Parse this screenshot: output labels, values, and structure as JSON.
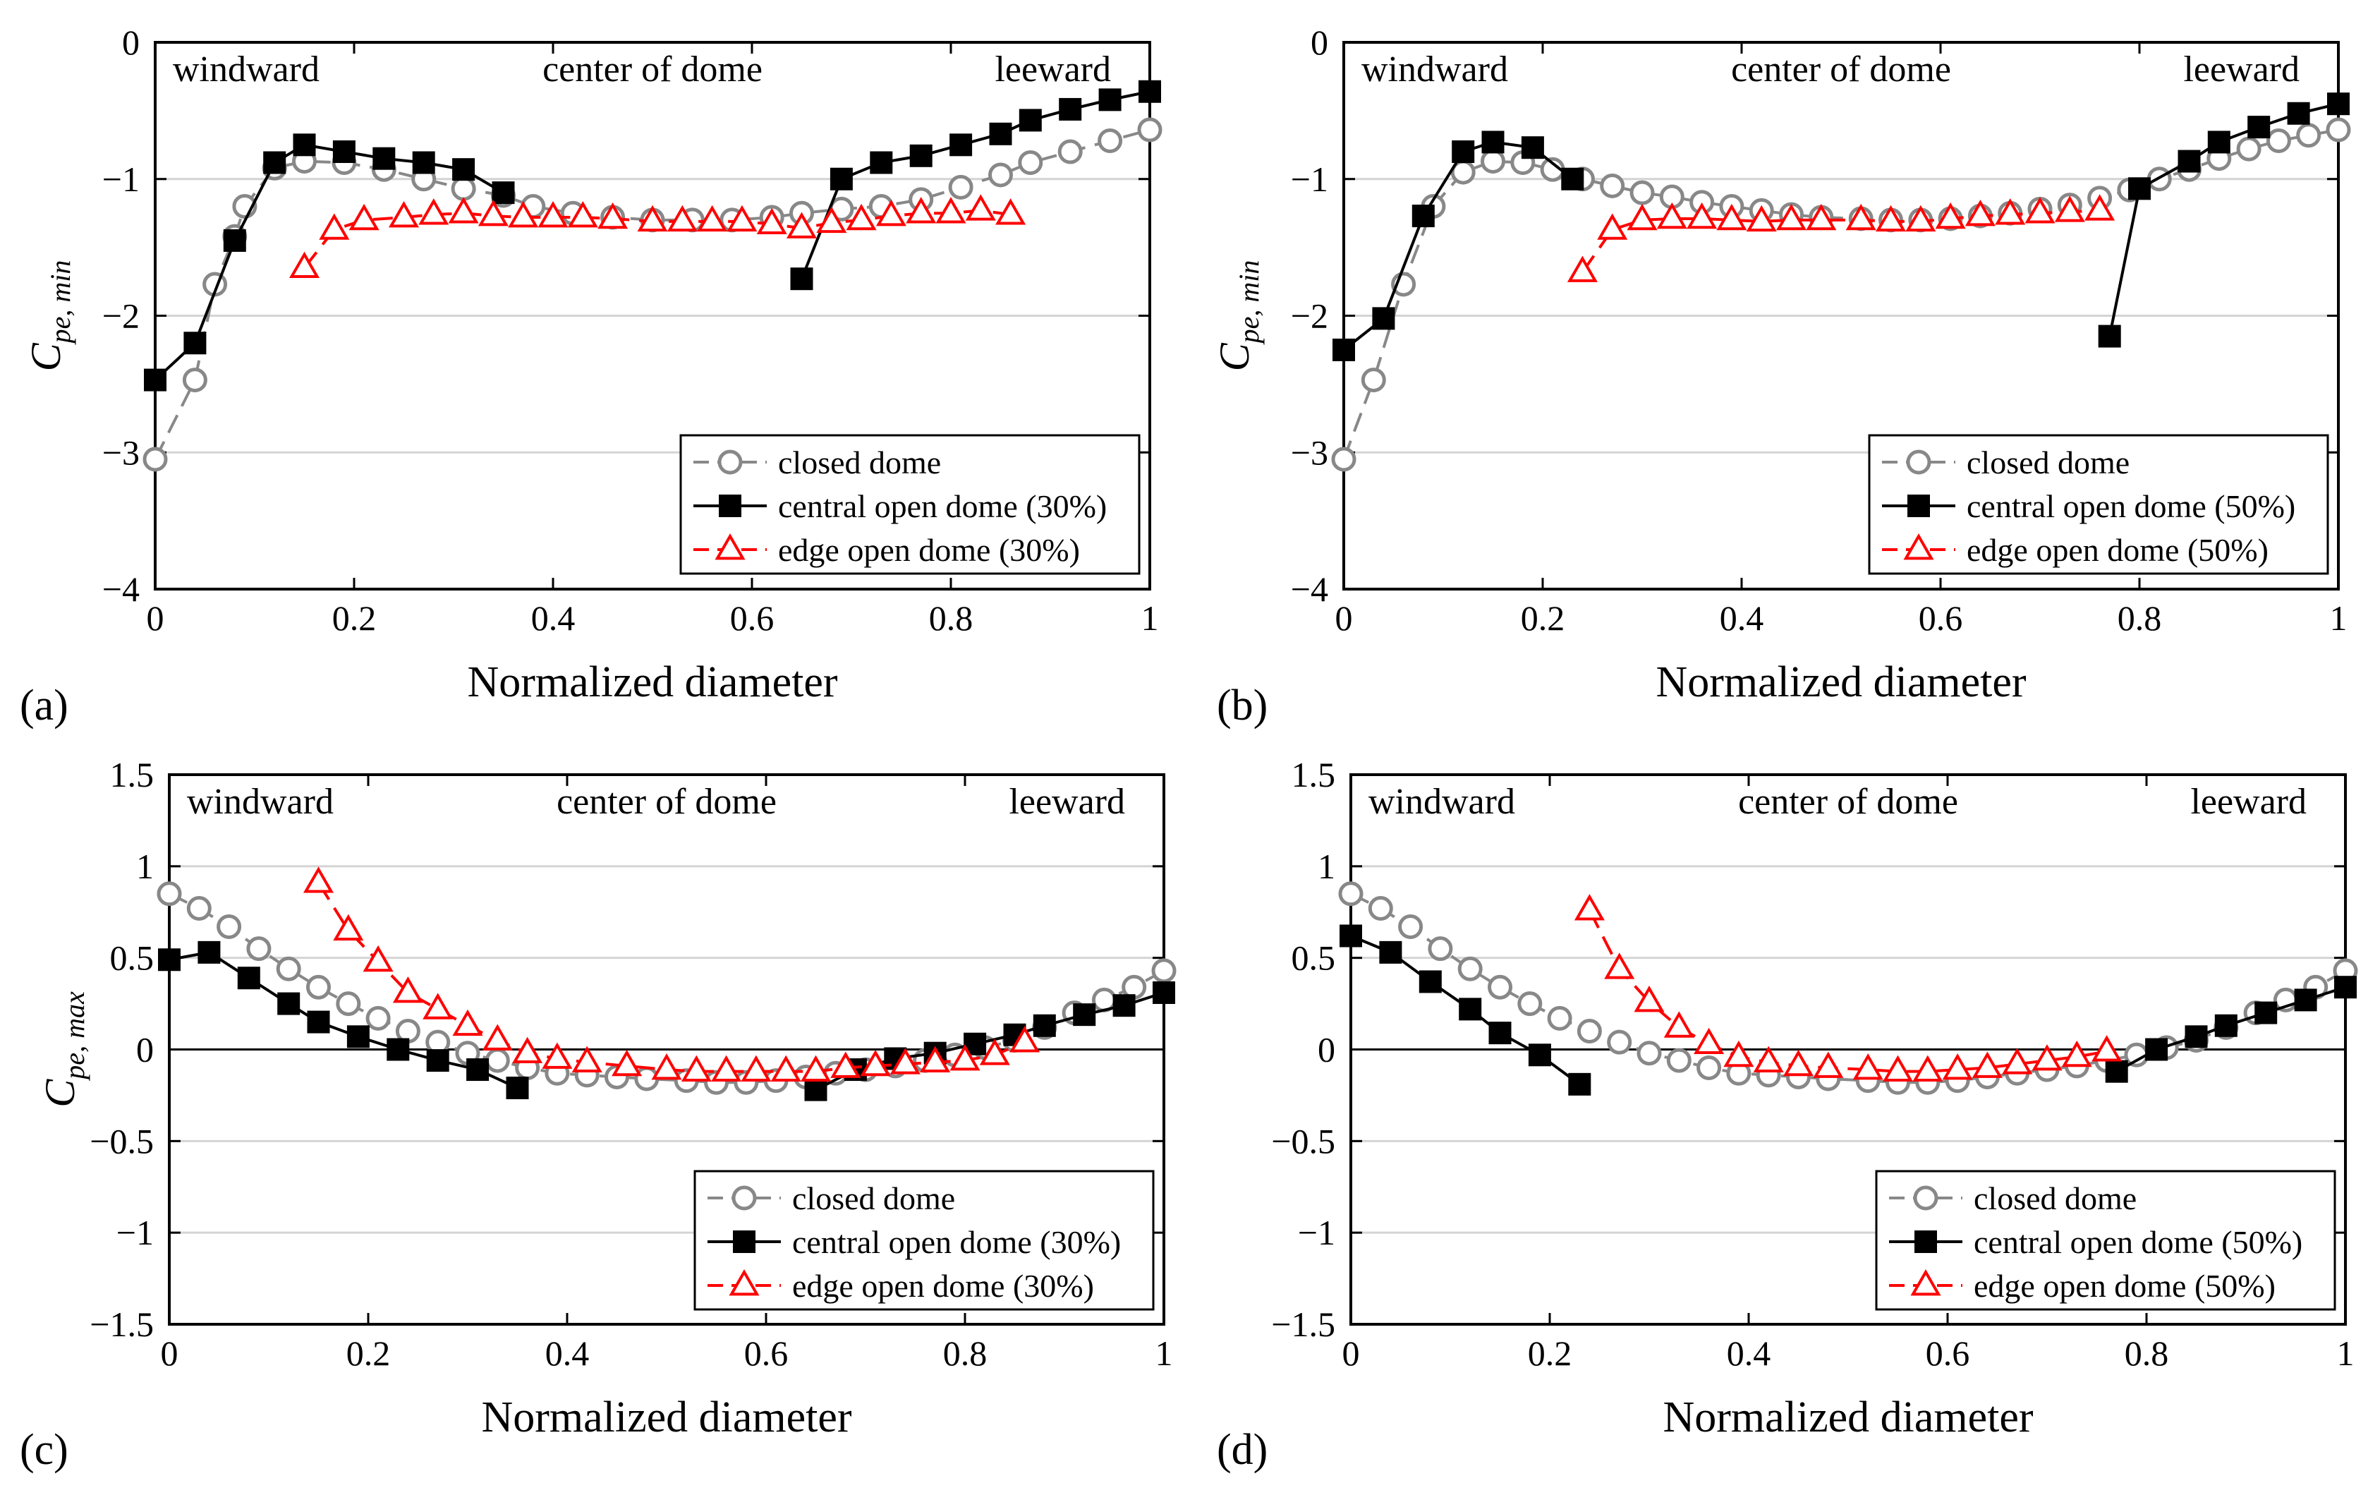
{
  "xlabel": "Normalized diameter",
  "region_labels": {
    "left": "windward",
    "center": "center of dome",
    "right": "leeward"
  },
  "colors": {
    "closed": "#888888",
    "central": "#000000",
    "edge": "#ff0000"
  },
  "chart_data": [
    {
      "panel": "(a)",
      "type": "line",
      "title": "",
      "ylabel_main": "C",
      "ylabel_sub": "pe, min",
      "xlim": [
        0,
        1
      ],
      "ylim": [
        -4,
        0
      ],
      "xticks": [
        0,
        0.2,
        0.4,
        0.6,
        0.8,
        1
      ],
      "xtick_labels": [
        "0",
        "0.2",
        "0.4",
        "0.6",
        "0.8",
        "1"
      ],
      "yticks": [
        -4,
        -3,
        -2,
        -1,
        0
      ],
      "ytick_labels": [
        "−4",
        "−3",
        "−2",
        "−1",
        "0"
      ],
      "gridlines_y": [
        -3,
        -2,
        -1
      ],
      "zero_line": false,
      "legend_position": "bottom-right",
      "series": [
        {
          "name": "closed dome",
          "style": "closed",
          "x": [
            0,
            0.04,
            0.06,
            0.08,
            0.09,
            0.12,
            0.15,
            0.19,
            0.23,
            0.27,
            0.31,
            0.35,
            0.38,
            0.42,
            0.46,
            0.5,
            0.54,
            0.58,
            0.62,
            0.65,
            0.69,
            0.73,
            0.77,
            0.81,
            0.85,
            0.88,
            0.92,
            0.96,
            1.0
          ],
          "y": [
            -3.05,
            -2.47,
            -1.77,
            -1.42,
            -1.2,
            -0.92,
            -0.87,
            -0.88,
            -0.93,
            -1.0,
            -1.07,
            -1.12,
            -1.2,
            -1.25,
            -1.28,
            -1.3,
            -1.3,
            -1.3,
            -1.28,
            -1.25,
            -1.22,
            -1.2,
            -1.15,
            -1.06,
            -0.97,
            -0.88,
            -0.8,
            -0.72,
            -0.64
          ]
        },
        {
          "name": "central open dome (30%)",
          "style": "central",
          "segments": [
            {
              "x": [
                0,
                0.04,
                0.08,
                0.12,
                0.15,
                0.19,
                0.23,
                0.27,
                0.31,
                0.35
              ],
              "y": [
                -2.47,
                -2.2,
                -1.45,
                -0.88,
                -0.75,
                -0.8,
                -0.85,
                -0.88,
                -0.93,
                -1.1
              ]
            },
            {
              "x": [
                0.65,
                0.69,
                0.73,
                0.77,
                0.81,
                0.85,
                0.88,
                0.92,
                0.96,
                1.0
              ],
              "y": [
                -1.73,
                -1.0,
                -0.88,
                -0.83,
                -0.75,
                -0.67,
                -0.57,
                -0.49,
                -0.42,
                -0.36
              ]
            }
          ]
        },
        {
          "name": "edge open dome (30%)",
          "style": "edge",
          "x": [
            0.15,
            0.18,
            0.21,
            0.25,
            0.28,
            0.31,
            0.34,
            0.37,
            0.4,
            0.43,
            0.46,
            0.5,
            0.53,
            0.56,
            0.59,
            0.62,
            0.65,
            0.68,
            0.71,
            0.74,
            0.77,
            0.8,
            0.83,
            0.86
          ],
          "y": [
            -1.65,
            -1.37,
            -1.3,
            -1.28,
            -1.26,
            -1.25,
            -1.27,
            -1.28,
            -1.28,
            -1.28,
            -1.29,
            -1.31,
            -1.31,
            -1.31,
            -1.31,
            -1.33,
            -1.36,
            -1.32,
            -1.3,
            -1.27,
            -1.25,
            -1.25,
            -1.23,
            -1.26
          ]
        }
      ],
      "legend": [
        "closed dome",
        "central open dome (30%)",
        "edge open dome (30%)"
      ]
    },
    {
      "panel": "(b)",
      "type": "line",
      "title": "",
      "ylabel_main": "C",
      "ylabel_sub": "pe, min",
      "xlim": [
        0,
        1
      ],
      "ylim": [
        -4,
        0
      ],
      "xticks": [
        0,
        0.2,
        0.4,
        0.6,
        0.8,
        1
      ],
      "xtick_labels": [
        "0",
        "0.2",
        "0.4",
        "0.6",
        "0.8",
        "1"
      ],
      "yticks": [
        -4,
        -3,
        -2,
        -1,
        0
      ],
      "ytick_labels": [
        "−4",
        "−3",
        "−2",
        "−1",
        "0"
      ],
      "gridlines_y": [
        -3,
        -2,
        -1
      ],
      "zero_line": false,
      "legend_position": "bottom-right",
      "series": [
        {
          "name": "closed dome",
          "style": "closed",
          "x": [
            0,
            0.03,
            0.06,
            0.09,
            0.12,
            0.15,
            0.18,
            0.21,
            0.24,
            0.27,
            0.3,
            0.33,
            0.36,
            0.39,
            0.42,
            0.45,
            0.48,
            0.52,
            0.55,
            0.58,
            0.61,
            0.64,
            0.67,
            0.7,
            0.73,
            0.76,
            0.79,
            0.82,
            0.85,
            0.88,
            0.91,
            0.94,
            0.97,
            1.0
          ],
          "y": [
            -3.05,
            -2.47,
            -1.77,
            -1.2,
            -0.95,
            -0.87,
            -0.88,
            -0.93,
            -1.0,
            -1.05,
            -1.1,
            -1.13,
            -1.17,
            -1.2,
            -1.23,
            -1.26,
            -1.28,
            -1.29,
            -1.3,
            -1.3,
            -1.29,
            -1.27,
            -1.25,
            -1.22,
            -1.19,
            -1.14,
            -1.08,
            -1.0,
            -0.93,
            -0.85,
            -0.78,
            -0.72,
            -0.68,
            -0.64
          ]
        },
        {
          "name": "central open dome (50%)",
          "style": "central",
          "segments": [
            {
              "x": [
                0,
                0.04,
                0.08,
                0.12,
                0.15,
                0.19,
                0.23
              ],
              "y": [
                -2.25,
                -2.02,
                -1.27,
                -0.8,
                -0.73,
                -0.77,
                -1.0
              ]
            },
            {
              "x": [
                0.77,
                0.8,
                0.85,
                0.88,
                0.92,
                0.96,
                1.0
              ],
              "y": [
                -2.15,
                -1.07,
                -0.87,
                -0.73,
                -0.62,
                -0.52,
                -0.45
              ]
            }
          ]
        },
        {
          "name": "edge open dome (50%)",
          "style": "edge",
          "x": [
            0.24,
            0.27,
            0.3,
            0.33,
            0.36,
            0.39,
            0.42,
            0.45,
            0.48,
            0.52,
            0.55,
            0.58,
            0.61,
            0.64,
            0.67,
            0.7,
            0.73,
            0.76
          ],
          "y": [
            -1.68,
            -1.37,
            -1.3,
            -1.29,
            -1.29,
            -1.3,
            -1.31,
            -1.3,
            -1.3,
            -1.3,
            -1.31,
            -1.31,
            -1.29,
            -1.27,
            -1.26,
            -1.25,
            -1.24,
            -1.23
          ]
        }
      ],
      "legend": [
        "closed dome",
        "central open dome (50%)",
        "edge open dome (50%)"
      ]
    },
    {
      "panel": "(c)",
      "type": "line",
      "title": "",
      "ylabel_main": "C",
      "ylabel_sub": "pe, max",
      "xlim": [
        0,
        1
      ],
      "ylim": [
        -1.5,
        1.5
      ],
      "xticks": [
        0,
        0.2,
        0.4,
        0.6,
        0.8,
        1
      ],
      "xtick_labels": [
        "0",
        "0.2",
        "0.4",
        "0.6",
        "0.8",
        "1"
      ],
      "yticks": [
        -1.5,
        -1,
        -0.5,
        0,
        0.5,
        1,
        1.5
      ],
      "ytick_labels": [
        "−1.5",
        "−1",
        "−0.5",
        "0",
        "0.5",
        "1",
        "1.5"
      ],
      "gridlines_y": [
        -1,
        -0.5,
        0.5,
        1
      ],
      "zero_line": true,
      "legend_position": "bottom-right",
      "series": [
        {
          "name": "closed dome",
          "style": "closed",
          "x": [
            0,
            0.03,
            0.06,
            0.09,
            0.12,
            0.15,
            0.18,
            0.21,
            0.24,
            0.27,
            0.3,
            0.33,
            0.36,
            0.39,
            0.42,
            0.45,
            0.48,
            0.52,
            0.55,
            0.58,
            0.61,
            0.64,
            0.67,
            0.7,
            0.73,
            0.76,
            0.79,
            0.82,
            0.85,
            0.88,
            0.91,
            0.94,
            0.97,
            1.0
          ],
          "y": [
            0.85,
            0.77,
            0.67,
            0.55,
            0.44,
            0.34,
            0.25,
            0.17,
            0.1,
            0.04,
            -0.02,
            -0.06,
            -0.1,
            -0.13,
            -0.14,
            -0.15,
            -0.16,
            -0.17,
            -0.18,
            -0.18,
            -0.17,
            -0.15,
            -0.13,
            -0.11,
            -0.09,
            -0.06,
            -0.03,
            0.01,
            0.05,
            0.12,
            0.2,
            0.27,
            0.34,
            0.43
          ]
        },
        {
          "name": "central open dome (30%)",
          "style": "central",
          "segments": [
            {
              "x": [
                0,
                0.04,
                0.08,
                0.12,
                0.15,
                0.19,
                0.23,
                0.27,
                0.31,
                0.35
              ],
              "y": [
                0.49,
                0.53,
                0.39,
                0.25,
                0.15,
                0.07,
                0.0,
                -0.06,
                -0.11,
                -0.21
              ]
            },
            {
              "x": [
                0.65,
                0.69,
                0.73,
                0.77,
                0.81,
                0.85,
                0.88,
                0.92,
                0.96,
                1.0
              ],
              "y": [
                -0.22,
                -0.11,
                -0.05,
                -0.02,
                0.03,
                0.08,
                0.13,
                0.19,
                0.24,
                0.31
              ]
            }
          ]
        },
        {
          "name": "edge open dome (30%)",
          "style": "edge",
          "x": [
            0.15,
            0.18,
            0.21,
            0.24,
            0.27,
            0.3,
            0.33,
            0.36,
            0.39,
            0.42,
            0.46,
            0.5,
            0.53,
            0.56,
            0.59,
            0.62,
            0.65,
            0.68,
            0.71,
            0.74,
            0.77,
            0.8,
            0.83,
            0.86
          ],
          "y": [
            0.91,
            0.65,
            0.48,
            0.31,
            0.22,
            0.13,
            0.05,
            -0.02,
            -0.05,
            -0.07,
            -0.09,
            -0.11,
            -0.12,
            -0.12,
            -0.12,
            -0.12,
            -0.12,
            -0.1,
            -0.09,
            -0.08,
            -0.07,
            -0.06,
            -0.03,
            0.04
          ]
        }
      ],
      "legend": [
        "closed dome",
        "central open dome (30%)",
        "edge open dome (30%)"
      ]
    },
    {
      "panel": "(d)",
      "type": "line",
      "title": "",
      "ylabel_main": "",
      "ylabel_sub": "",
      "xlim": [
        0,
        1
      ],
      "ylim": [
        -1.5,
        1.5
      ],
      "xticks": [
        0,
        0.2,
        0.4,
        0.6,
        0.8,
        1
      ],
      "xtick_labels": [
        "0",
        "0.2",
        "0.4",
        "0.6",
        "0.8",
        "1"
      ],
      "yticks": [
        -1.5,
        -1,
        -0.5,
        0,
        0.5,
        1,
        1.5
      ],
      "ytick_labels": [
        "−1.5",
        "−1",
        "−0.5",
        "0",
        "0.5",
        "1",
        "1.5"
      ],
      "gridlines_y": [
        -1,
        -0.5,
        0.5,
        1
      ],
      "zero_line": true,
      "legend_position": "bottom-right",
      "series": [
        {
          "name": "closed dome",
          "style": "closed",
          "x": [
            0,
            0.03,
            0.06,
            0.09,
            0.12,
            0.15,
            0.18,
            0.21,
            0.24,
            0.27,
            0.3,
            0.33,
            0.36,
            0.39,
            0.42,
            0.45,
            0.48,
            0.52,
            0.55,
            0.58,
            0.61,
            0.64,
            0.67,
            0.7,
            0.73,
            0.76,
            0.79,
            0.82,
            0.85,
            0.88,
            0.91,
            0.94,
            0.97,
            1.0
          ],
          "y": [
            0.85,
            0.77,
            0.67,
            0.55,
            0.44,
            0.34,
            0.25,
            0.17,
            0.1,
            0.04,
            -0.02,
            -0.06,
            -0.1,
            -0.13,
            -0.14,
            -0.15,
            -0.16,
            -0.17,
            -0.18,
            -0.18,
            -0.17,
            -0.15,
            -0.13,
            -0.11,
            -0.09,
            -0.06,
            -0.03,
            0.01,
            0.05,
            0.12,
            0.2,
            0.27,
            0.34,
            0.43
          ]
        },
        {
          "name": "central open dome (50%)",
          "style": "central",
          "segments": [
            {
              "x": [
                0,
                0.04,
                0.08,
                0.12,
                0.15,
                0.19,
                0.23
              ],
              "y": [
                0.62,
                0.53,
                0.37,
                0.22,
                0.09,
                -0.03,
                -0.19
              ]
            },
            {
              "x": [
                0.77,
                0.81,
                0.85,
                0.88,
                0.92,
                0.96,
                1.0
              ],
              "y": [
                -0.12,
                0.0,
                0.07,
                0.13,
                0.2,
                0.27,
                0.34
              ]
            }
          ]
        },
        {
          "name": "edge open dome (50%)",
          "style": "edge",
          "x": [
            0.24,
            0.27,
            0.3,
            0.33,
            0.36,
            0.39,
            0.42,
            0.45,
            0.48,
            0.52,
            0.55,
            0.58,
            0.61,
            0.64,
            0.67,
            0.7,
            0.73,
            0.76
          ],
          "y": [
            0.76,
            0.44,
            0.26,
            0.12,
            0.03,
            -0.04,
            -0.07,
            -0.09,
            -0.1,
            -0.11,
            -0.12,
            -0.12,
            -0.11,
            -0.1,
            -0.08,
            -0.06,
            -0.04,
            -0.01
          ]
        }
      ],
      "legend": [
        "closed dome",
        "central open dome (50%)",
        "edge open dome (50%)"
      ]
    }
  ]
}
